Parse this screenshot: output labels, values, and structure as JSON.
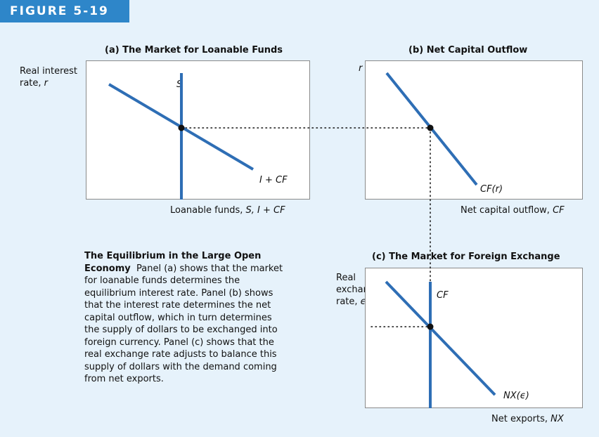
{
  "figure": {
    "tag": "FIGURE 5-19"
  },
  "panel_a": {
    "title": "(a) The Market for Loanable Funds",
    "y_label_line1": "Real interest",
    "y_label_line2_prefix": "rate, ",
    "y_label_line2_var": "r",
    "x_label_prefix": "Loanable funds, ",
    "x_label_var": "S, I + CF",
    "curve_supply": "S",
    "curve_demand": "I + CF"
  },
  "panel_b": {
    "title": "(b) Net Capital Outflow",
    "y_label": "r",
    "x_label_prefix": "Net capital outflow, ",
    "x_label_var": "CF",
    "curve": "CF(r)"
  },
  "panel_c": {
    "title": "(c) The Market for Foreign Exchange",
    "y_label_line1": "Real",
    "y_label_line2": "exchange",
    "y_label_line3_prefix": "rate, ",
    "y_label_line3_var": "ϵ",
    "x_label_prefix": "Net exports, ",
    "x_label_var": "NX",
    "curve_supply": "CF",
    "curve_demand": "NX(ϵ)"
  },
  "caption": {
    "title": "The Equilibrium in the Large Open Economy",
    "body": "Panel (a) shows that the market for loanable funds determines the equilibrium interest rate. Panel (b) shows that the interest rate determines the net capital outflow, which in turn determines the supply of dollars to be exchanged into foreign currency. Panel (c) shows that the real exchange rate adjusts to balance this supply of dollars with the demand coming from net exports."
  },
  "colors": {
    "curve": "#2e6eb5",
    "accent": "#2e86c9",
    "background": "#e6f2fb"
  }
}
